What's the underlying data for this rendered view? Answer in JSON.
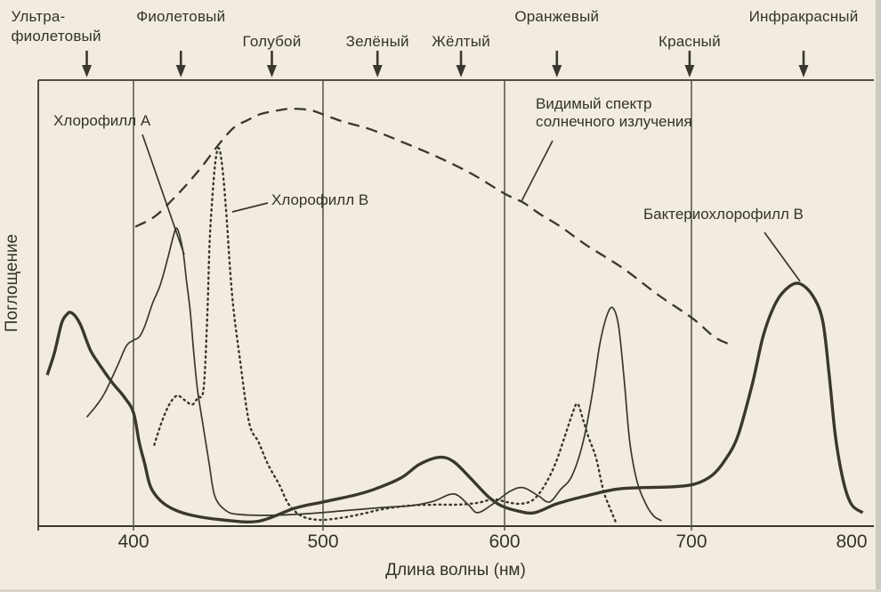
{
  "colors": {
    "paper": "#f1ecdf",
    "ink": "#3a372e",
    "grid": "#55524a"
  },
  "chart_data": {
    "type": "line",
    "title": "",
    "xlabel": "Длина волны (нм)",
    "ylabel": "Поглощение",
    "x_ticks": [
      400,
      500,
      600,
      700,
      800
    ],
    "x_range_nm": [
      347,
      812
    ],
    "y_axis_note": "relative absorption, no numeric ticks",
    "grid": "vertical gridlines at 400, 500, 600, 700 nm",
    "legend_position": "labels with leader lines inside plot",
    "spectrum_bands": [
      {
        "id": "ultraviolet",
        "label": "Ультра-фиолетовый",
        "label_lines": [
          "Ультра-",
          "фиолетовый"
        ],
        "nm": 374,
        "row": 1,
        "align": "left"
      },
      {
        "id": "violet",
        "label": "Фиолетовый",
        "nm": 425,
        "row": 1
      },
      {
        "id": "blue",
        "label": "Голубой",
        "nm": 473,
        "row": 2
      },
      {
        "id": "green",
        "label": "Зелёный",
        "nm": 530,
        "row": 2
      },
      {
        "id": "yellow",
        "label": "Жёлтый",
        "nm": 576,
        "row": 2
      },
      {
        "id": "orange",
        "label": "Оранжевый",
        "nm": 628,
        "row": 1
      },
      {
        "id": "red",
        "label": "Красный",
        "nm": 699,
        "row": 2
      },
      {
        "id": "infrared",
        "label": "Инфракрасный",
        "nm": 770,
        "row": 1
      }
    ],
    "series": [
      {
        "id": "solar",
        "name": "Видимый спектр солнечного излучения",
        "line": "dashed",
        "points": [
          [
            401,
            0.672
          ],
          [
            411,
            0.694
          ],
          [
            420,
            0.73
          ],
          [
            428,
            0.766
          ],
          [
            436,
            0.806
          ],
          [
            445,
            0.856
          ],
          [
            453,
            0.894
          ],
          [
            460,
            0.91
          ],
          [
            467,
            0.924
          ],
          [
            476,
            0.932
          ],
          [
            484,
            0.936
          ],
          [
            494,
            0.932
          ],
          [
            502,
            0.92
          ],
          [
            512,
            0.906
          ],
          [
            526,
            0.89
          ],
          [
            541,
            0.866
          ],
          [
            562,
            0.83
          ],
          [
            582,
            0.79
          ],
          [
            600,
            0.746
          ],
          [
            610,
            0.726
          ],
          [
            619,
            0.7
          ],
          [
            630,
            0.672
          ],
          [
            644,
            0.63
          ],
          [
            663,
            0.58
          ],
          [
            682,
            0.52
          ],
          [
            701,
            0.466
          ],
          [
            714,
            0.426
          ],
          [
            723,
            0.41
          ]
        ]
      },
      {
        "id": "chlorophyll_b",
        "name": "Хлорофилл В",
        "line": "dotted",
        "points": [
          [
            411,
            0.184
          ],
          [
            415,
            0.236
          ],
          [
            419,
            0.275
          ],
          [
            423,
            0.294
          ],
          [
            427,
            0.284
          ],
          [
            431,
            0.274
          ],
          [
            434,
            0.29
          ],
          [
            437,
            0.31
          ],
          [
            439,
            0.48
          ],
          [
            440,
            0.62
          ],
          [
            441,
            0.7
          ],
          [
            443,
            0.81
          ],
          [
            445,
            0.848
          ],
          [
            447,
            0.8
          ],
          [
            449,
            0.7
          ],
          [
            452,
            0.52
          ],
          [
            456,
            0.38
          ],
          [
            461,
            0.234
          ],
          [
            466,
            0.19
          ],
          [
            471,
            0.14
          ],
          [
            477,
            0.094
          ],
          [
            482,
            0.05
          ],
          [
            489,
            0.024
          ],
          [
            498,
            0.016
          ],
          [
            509,
            0.02
          ],
          [
            520,
            0.028
          ],
          [
            533,
            0.04
          ],
          [
            548,
            0.048
          ],
          [
            562,
            0.05
          ],
          [
            574,
            0.05
          ],
          [
            585,
            0.054
          ],
          [
            594,
            0.062
          ],
          [
            601,
            0.056
          ],
          [
            608,
            0.052
          ],
          [
            615,
            0.06
          ],
          [
            621,
            0.09
          ],
          [
            627,
            0.14
          ],
          [
            632,
            0.2
          ],
          [
            636,
            0.25
          ],
          [
            639,
            0.276
          ],
          [
            642,
            0.24
          ],
          [
            645,
            0.2
          ],
          [
            649,
            0.154
          ],
          [
            653,
            0.08
          ],
          [
            657,
            0.036
          ],
          [
            660,
            0.006
          ]
        ]
      },
      {
        "id": "chlorophyll_a",
        "name": "Хлорофилл А",
        "line": "solid-thin",
        "points": [
          [
            374,
            0.246
          ],
          [
            379,
            0.27
          ],
          [
            384,
            0.3
          ],
          [
            391,
            0.36
          ],
          [
            396,
            0.405
          ],
          [
            400,
            0.418
          ],
          [
            403,
            0.425
          ],
          [
            406,
            0.45
          ],
          [
            410,
            0.5
          ],
          [
            414,
            0.54
          ],
          [
            418,
            0.6
          ],
          [
            421,
            0.65
          ],
          [
            423,
            0.668
          ],
          [
            426,
            0.62
          ],
          [
            428,
            0.55
          ],
          [
            430,
            0.48
          ],
          [
            432,
            0.38
          ],
          [
            434,
            0.3
          ],
          [
            437,
            0.22
          ],
          [
            440,
            0.14
          ],
          [
            443,
            0.068
          ],
          [
            449,
            0.036
          ],
          [
            456,
            0.028
          ],
          [
            470,
            0.026
          ],
          [
            485,
            0.028
          ],
          [
            499,
            0.032
          ],
          [
            516,
            0.038
          ],
          [
            534,
            0.044
          ],
          [
            549,
            0.048
          ],
          [
            561,
            0.058
          ],
          [
            572,
            0.074
          ],
          [
            580,
            0.05
          ],
          [
            585,
            0.032
          ],
          [
            593,
            0.05
          ],
          [
            603,
            0.08
          ],
          [
            610,
            0.088
          ],
          [
            618,
            0.07
          ],
          [
            624,
            0.056
          ],
          [
            630,
            0.084
          ],
          [
            636,
            0.114
          ],
          [
            642,
            0.19
          ],
          [
            647,
            0.3
          ],
          [
            651,
            0.41
          ],
          [
            655,
            0.476
          ],
          [
            658,
            0.49
          ],
          [
            661,
            0.45
          ],
          [
            664,
            0.33
          ],
          [
            667,
            0.19
          ],
          [
            671,
            0.1
          ],
          [
            676,
            0.048
          ],
          [
            680,
            0.024
          ],
          [
            684,
            0.014
          ]
        ]
      },
      {
        "id": "bacteriochlorophyll_b",
        "name": "Бактериохлорофилл В",
        "line": "solid-thick",
        "points": [
          [
            352,
            0.34
          ],
          [
            356,
            0.39
          ],
          [
            360,
            0.456
          ],
          [
            363,
            0.476
          ],
          [
            365,
            0.48
          ],
          [
            368,
            0.47
          ],
          [
            371,
            0.448
          ],
          [
            376,
            0.396
          ],
          [
            381,
            0.364
          ],
          [
            388,
            0.324
          ],
          [
            395,
            0.29
          ],
          [
            400,
            0.256
          ],
          [
            403,
            0.19
          ],
          [
            406,
            0.14
          ],
          [
            409,
            0.09
          ],
          [
            414,
            0.06
          ],
          [
            421,
            0.04
          ],
          [
            431,
            0.026
          ],
          [
            447,
            0.016
          ],
          [
            466,
            0.013
          ],
          [
            485,
            0.042
          ],
          [
            500,
            0.056
          ],
          [
            516,
            0.07
          ],
          [
            528,
            0.084
          ],
          [
            543,
            0.11
          ],
          [
            553,
            0.14
          ],
          [
            564,
            0.156
          ],
          [
            572,
            0.146
          ],
          [
            582,
            0.106
          ],
          [
            591,
            0.068
          ],
          [
            598,
            0.048
          ],
          [
            607,
            0.036
          ],
          [
            616,
            0.032
          ],
          [
            628,
            0.052
          ],
          [
            642,
            0.068
          ],
          [
            659,
            0.084
          ],
          [
            673,
            0.088
          ],
          [
            690,
            0.09
          ],
          [
            702,
            0.096
          ],
          [
            713,
            0.116
          ],
          [
            721,
            0.15
          ],
          [
            729,
            0.204
          ],
          [
            738,
            0.32
          ],
          [
            745,
            0.43
          ],
          [
            753,
            0.504
          ],
          [
            761,
            0.538
          ],
          [
            768,
            0.544
          ],
          [
            776,
            0.516
          ],
          [
            782,
            0.46
          ],
          [
            786,
            0.34
          ],
          [
            790,
            0.2
          ],
          [
            795,
            0.1
          ],
          [
            800,
            0.05
          ],
          [
            806,
            0.032
          ]
        ]
      }
    ],
    "annotations": [
      {
        "id": "chlorophyll_a",
        "lines": [
          "Хлорофилл А"
        ],
        "x": 60,
        "y": 126,
        "leader": [
          [
            160,
            151
          ],
          [
            207,
            286
          ]
        ]
      },
      {
        "id": "chlorophyll_b",
        "lines": [
          "Хлорофилл В"
        ],
        "x": 305,
        "y": 215,
        "leader": [
          [
            301,
            228
          ],
          [
            261,
            238
          ]
        ]
      },
      {
        "id": "solar",
        "lines": [
          "Видимый спектр",
          "солнечного излучения"
        ],
        "x": 602,
        "y": 107,
        "leader": [
          [
            621,
            158
          ],
          [
            586,
            226
          ]
        ]
      },
      {
        "id": "bacteriochlorophyll_b",
        "lines": [
          "Бактериохлорофилл В"
        ],
        "x": 723,
        "y": 231,
        "leader": [
          [
            859,
            261
          ],
          [
            899,
            316
          ]
        ]
      }
    ]
  }
}
